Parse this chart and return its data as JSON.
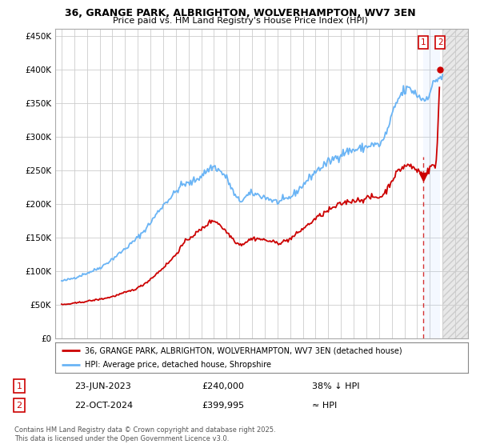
{
  "title_line1": "36, GRANGE PARK, ALBRIGHTON, WOLVERHAMPTON, WV7 3EN",
  "title_line2": "Price paid vs. HM Land Registry's House Price Index (HPI)",
  "ylabel_ticks": [
    "£0",
    "£50K",
    "£100K",
    "£150K",
    "£200K",
    "£250K",
    "£300K",
    "£350K",
    "£400K",
    "£450K"
  ],
  "ytick_values": [
    0,
    50000,
    100000,
    150000,
    200000,
    250000,
    300000,
    350000,
    400000,
    450000
  ],
  "xlim": [
    1994.5,
    2027.0
  ],
  "ylim": [
    0,
    460000
  ],
  "xtick_years": [
    1995,
    1996,
    1997,
    1998,
    1999,
    2000,
    2001,
    2002,
    2003,
    2004,
    2005,
    2006,
    2007,
    2008,
    2009,
    2010,
    2011,
    2012,
    2013,
    2014,
    2015,
    2016,
    2017,
    2018,
    2019,
    2020,
    2021,
    2022,
    2023,
    2024,
    2025,
    2026
  ],
  "hpi_color": "#6ab4f5",
  "price_color": "#cc0000",
  "sale1_x": 2023.47,
  "sale1_y": 240000,
  "sale2_x": 2024.81,
  "sale2_y": 399995,
  "shaded_start": 2025.0,
  "legend_label1": "36, GRANGE PARK, ALBRIGHTON, WOLVERHAMPTON, WV7 3EN (detached house)",
  "legend_label2": "HPI: Average price, detached house, Shropshire",
  "table_row1": [
    "1",
    "23-JUN-2023",
    "£240,000",
    "38% ↓ HPI"
  ],
  "table_row2": [
    "2",
    "22-OCT-2024",
    "£399,995",
    "≈ HPI"
  ],
  "footer": "Contains HM Land Registry data © Crown copyright and database right 2025.\nThis data is licensed under the Open Government Licence v3.0.",
  "bg_color": "#ffffff",
  "plot_bg_color": "#ffffff",
  "grid_color": "#cccccc"
}
